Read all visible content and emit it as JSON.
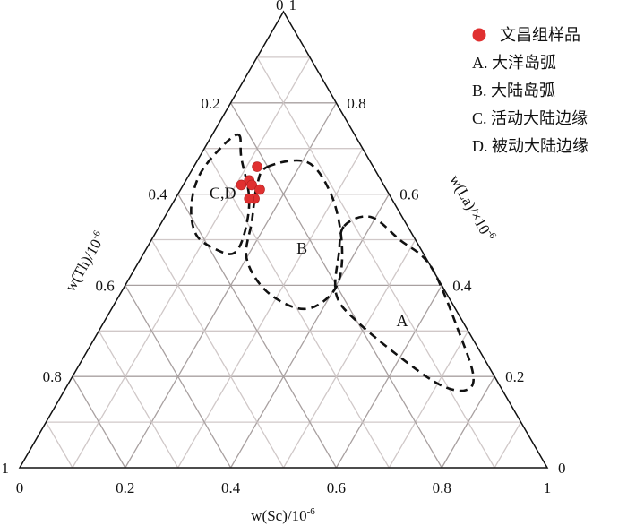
{
  "chart_data": {
    "type": "scatter",
    "subtype": "ternary",
    "axes": {
      "top": {
        "label": "w(La)/×10",
        "sup": "-6",
        "ticks": [
          "1",
          "0.8",
          "0.6",
          "0.4",
          "0.2",
          "0"
        ]
      },
      "right": {
        "label": "w(Sc)/10",
        "sup": "-6",
        "ticks": [
          "0",
          "0.2",
          "0.4",
          "0.6",
          "0.8",
          "1"
        ]
      },
      "left": {
        "label": "w(Th)/10",
        "sup": "-6",
        "ticks": [
          "0",
          "0.2",
          "0.4",
          "0.6",
          "0.8",
          "1"
        ]
      }
    },
    "grid": true,
    "grid_step": 0.1,
    "series": [
      {
        "name": "文昌组样品",
        "color": "#e03030",
        "points": [
          {
            "La": 0.66,
            "Sc": 0.12,
            "Th": 0.22
          },
          {
            "La": 0.63,
            "Sc": 0.12,
            "Th": 0.25
          },
          {
            "La": 0.62,
            "Sc": 0.11,
            "Th": 0.27
          },
          {
            "La": 0.62,
            "Sc": 0.13,
            "Th": 0.25
          },
          {
            "La": 0.61,
            "Sc": 0.15,
            "Th": 0.24
          },
          {
            "La": 0.59,
            "Sc": 0.15,
            "Th": 0.26
          },
          {
            "La": 0.59,
            "Sc": 0.14,
            "Th": 0.27
          }
        ]
      }
    ],
    "regions": [
      {
        "label": "C,D",
        "label_pos": {
          "La": 0.59,
          "Sc": 0.09
        },
        "outline": [
          [
            0.73,
            0.05
          ],
          [
            0.68,
            0.08
          ],
          [
            0.59,
            0.14
          ],
          [
            0.51,
            0.17
          ],
          [
            0.47,
            0.17
          ],
          [
            0.48,
            0.13
          ],
          [
            0.51,
            0.08
          ],
          [
            0.57,
            0.04
          ],
          [
            0.64,
            0.02
          ],
          [
            0.7,
            0.03
          ]
        ]
      },
      {
        "label": "B",
        "label_pos": {
          "La": 0.47,
          "Sc": 0.3
        },
        "outline": [
          [
            0.66,
            0.14
          ],
          [
            0.67,
            0.21
          ],
          [
            0.6,
            0.29
          ],
          [
            0.5,
            0.36
          ],
          [
            0.41,
            0.4
          ],
          [
            0.36,
            0.39
          ],
          [
            0.35,
            0.35
          ],
          [
            0.39,
            0.27
          ],
          [
            0.46,
            0.2
          ],
          [
            0.54,
            0.17
          ],
          [
            0.62,
            0.14
          ]
        ]
      },
      {
        "label": "A",
        "label_pos": {
          "La": 0.31,
          "Sc": 0.57
        },
        "outline": [
          [
            0.53,
            0.35
          ],
          [
            0.55,
            0.39
          ],
          [
            0.5,
            0.47
          ],
          [
            0.44,
            0.56
          ],
          [
            0.29,
            0.69
          ],
          [
            0.2,
            0.76
          ],
          [
            0.17,
            0.76
          ],
          [
            0.18,
            0.71
          ],
          [
            0.23,
            0.62
          ],
          [
            0.32,
            0.48
          ],
          [
            0.38,
            0.41
          ],
          [
            0.47,
            0.37
          ]
        ]
      }
    ],
    "legend": {
      "placement": "top-right",
      "items": [
        "文昌组样品",
        "A. 大洋岛弧",
        "B. 大陆岛弧",
        "C. 活动大陆边缘",
        "D. 被动大陆边缘"
      ]
    }
  }
}
